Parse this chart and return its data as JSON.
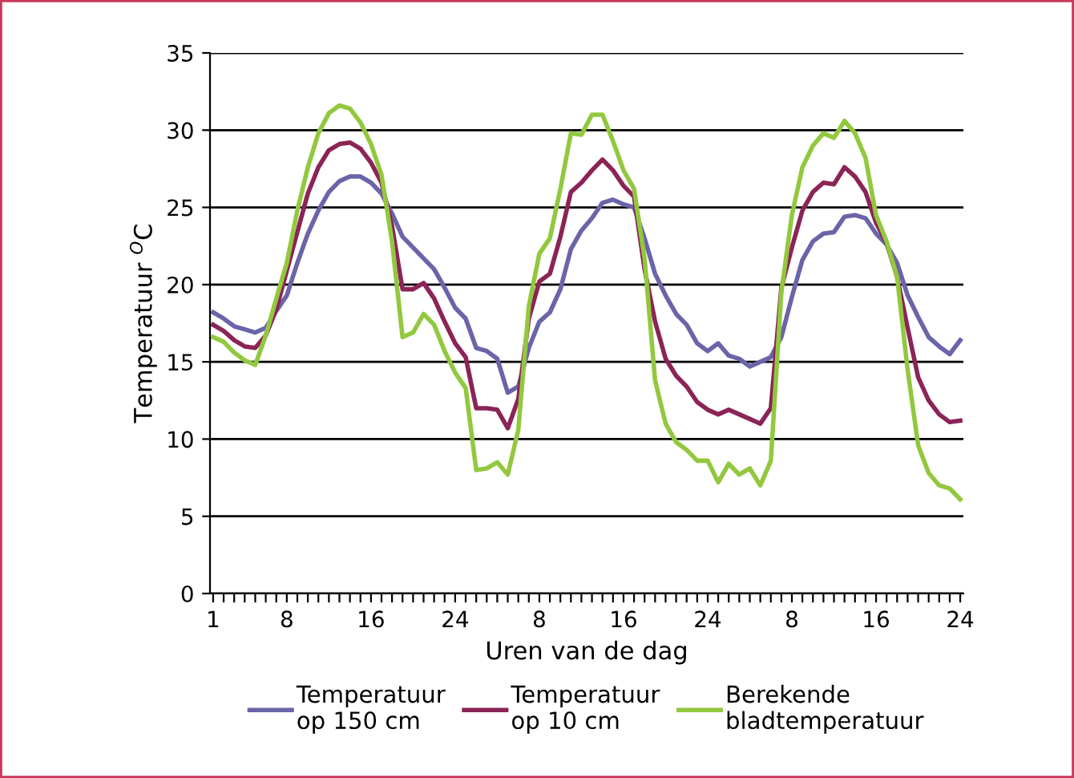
{
  "chart_data": {
    "type": "line",
    "categories": [
      "1",
      null,
      null,
      null,
      null,
      null,
      null,
      "8",
      null,
      null,
      null,
      null,
      null,
      null,
      null,
      "16",
      null,
      null,
      null,
      null,
      null,
      null,
      null,
      "24",
      null,
      null,
      null,
      null,
      null,
      null,
      null,
      "8",
      null,
      null,
      null,
      null,
      null,
      null,
      null,
      "16",
      null,
      null,
      null,
      null,
      null,
      null,
      null,
      "24",
      null,
      null,
      null,
      null,
      null,
      null,
      null,
      "8",
      null,
      null,
      null,
      null,
      null,
      null,
      null,
      "16",
      null,
      null,
      null,
      null,
      null,
      null,
      null,
      "24"
    ],
    "xlabel": "Uren van de dag",
    "ylabel": "Temperatuur $^{O}$C",
    "ylim": [
      0,
      35
    ],
    "yticks": [
      0,
      5,
      10,
      15,
      20,
      25,
      30,
      35
    ],
    "grid": "y",
    "legend": "bottom",
    "marker": "none",
    "line_style": "solid",
    "series": [
      {
        "name": "Temperatuur\nop 150 cm",
        "color": "#6a64a8",
        "values": [
          18.2,
          17.8,
          17.3,
          17.1,
          16.9,
          17.2,
          18.3,
          19.3,
          21.4,
          23.3,
          24.8,
          26.0,
          26.7,
          27.0,
          27.0,
          26.6,
          25.9,
          24.6,
          23.1,
          22.4,
          21.7,
          21.0,
          19.8,
          18.5,
          17.8,
          15.9,
          15.7,
          15.2,
          13.0,
          13.4,
          15.9,
          17.6,
          18.2,
          19.7,
          22.3,
          23.5,
          24.3,
          25.3,
          25.5,
          25.2,
          25.0,
          23.0,
          20.7,
          19.3,
          18.1,
          17.4,
          16.2,
          15.7,
          16.2,
          15.4,
          15.2,
          14.7,
          15.0,
          15.3,
          16.6,
          19.2,
          21.6,
          22.8,
          23.3,
          23.4,
          24.4,
          24.5,
          24.3,
          23.3,
          22.6,
          21.4,
          19.3,
          17.9,
          16.6,
          16.0,
          15.5,
          16.4
        ]
      },
      {
        "name": "Temperatuur\nop 10 cm",
        "color": "#8b2457",
        "values": [
          17.4,
          17.0,
          16.4,
          16.0,
          15.9,
          16.7,
          18.4,
          20.9,
          23.4,
          25.9,
          27.6,
          28.7,
          29.1,
          29.2,
          28.8,
          27.9,
          26.6,
          23.8,
          19.7,
          19.7,
          20.1,
          19.1,
          17.6,
          16.2,
          15.3,
          12.0,
          12.0,
          11.9,
          10.7,
          12.6,
          17.8,
          20.2,
          20.7,
          23.1,
          26.0,
          26.6,
          27.4,
          28.1,
          27.4,
          26.4,
          25.7,
          21.0,
          17.6,
          15.2,
          14.1,
          13.4,
          12.4,
          11.9,
          11.6,
          11.9,
          11.6,
          11.3,
          11.0,
          12.0,
          19.8,
          22.4,
          24.8,
          26.0,
          26.6,
          26.5,
          27.6,
          27.0,
          26.0,
          24.0,
          22.7,
          20.5,
          17.2,
          14.0,
          12.5,
          11.6,
          11.1,
          11.2
        ]
      },
      {
        "name": "Berekende\nbladtemperatuur",
        "color": "#92c83e",
        "values": [
          16.6,
          16.3,
          15.6,
          15.1,
          14.8,
          16.7,
          19.1,
          21.4,
          24.8,
          27.6,
          29.8,
          31.1,
          31.6,
          31.4,
          30.5,
          29.1,
          27.1,
          22.8,
          16.6,
          16.9,
          18.1,
          17.4,
          15.7,
          14.3,
          13.3,
          8.0,
          8.1,
          8.5,
          7.7,
          10.6,
          18.6,
          22.0,
          23.0,
          26.2,
          29.8,
          29.7,
          31.0,
          31.0,
          29.3,
          27.4,
          26.2,
          21.7,
          13.8,
          11.0,
          9.8,
          9.3,
          8.6,
          8.6,
          7.2,
          8.4,
          7.7,
          8.1,
          7.0,
          8.6,
          19.5,
          24.5,
          27.6,
          29.0,
          29.8,
          29.5,
          30.6,
          29.8,
          28.2,
          24.5,
          22.8,
          20.5,
          14.5,
          9.6,
          7.8,
          7.0,
          6.8,
          6.1
        ]
      }
    ]
  }
}
